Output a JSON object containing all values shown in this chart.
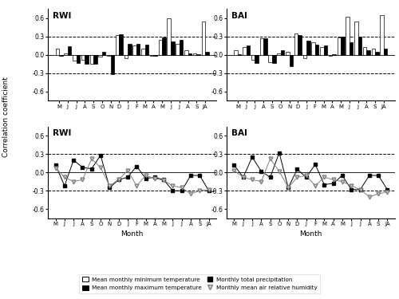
{
  "months": [
    "M",
    "J",
    "J",
    "A",
    "S",
    "O",
    "N",
    "D",
    "J",
    "F",
    "M",
    "A",
    "M",
    "J",
    "J",
    "A",
    "S",
    "JA"
  ],
  "significance_level": 0.3,
  "RWI_top_tmin": [
    0.1,
    0.03,
    -0.1,
    -0.08,
    -0.15,
    -0.03,
    -0.02,
    0.32,
    -0.05,
    0.15,
    0.1,
    -0.02,
    0.25,
    0.6,
    0.18,
    0.08,
    0.02,
    0.55
  ],
  "RWI_top_tmax": [
    -0.02,
    0.14,
    -0.13,
    -0.15,
    -0.15,
    0.05,
    -0.32,
    0.33,
    0.18,
    0.18,
    0.17,
    -0.01,
    0.28,
    0.22,
    0.25,
    0.03,
    0.01,
    0.05
  ],
  "BAI_top_tmin": [
    0.08,
    0.13,
    -0.08,
    0.27,
    -0.12,
    0.03,
    0.05,
    0.35,
    -0.06,
    0.2,
    0.13,
    -0.02,
    0.29,
    0.62,
    0.55,
    0.13,
    0.1,
    0.65
  ],
  "BAI_top_tmax": [
    0.01,
    0.15,
    -0.13,
    0.27,
    -0.13,
    0.08,
    -0.18,
    0.32,
    0.23,
    0.17,
    0.15,
    0.01,
    0.3,
    0.2,
    0.3,
    0.08,
    0.05,
    0.1
  ],
  "RWI_bot_prec": [
    0.12,
    -0.22,
    0.2,
    0.08,
    0.06,
    0.28,
    -0.25,
    -0.12,
    -0.08,
    0.1,
    -0.1,
    -0.08,
    -0.12,
    -0.3,
    -0.3,
    -0.05,
    -0.05,
    -0.3
  ],
  "RWI_bot_rh": [
    0.07,
    -0.08,
    -0.15,
    -0.12,
    0.22,
    0.08,
    -0.22,
    -0.12,
    0.03,
    -0.22,
    -0.05,
    -0.1,
    -0.13,
    -0.22,
    -0.25,
    -0.35,
    -0.3,
    -0.28
  ],
  "BAI_bot_prec": [
    0.12,
    -0.08,
    0.25,
    0.02,
    -0.08,
    0.32,
    -0.25,
    0.05,
    -0.08,
    0.13,
    -0.2,
    -0.18,
    -0.05,
    -0.28,
    -0.28,
    -0.05,
    -0.05,
    -0.28
  ],
  "BAI_bot_rh": [
    0.03,
    -0.08,
    -0.12,
    -0.15,
    0.22,
    0.02,
    -0.25,
    -0.08,
    -0.05,
    -0.22,
    -0.08,
    -0.12,
    -0.15,
    -0.22,
    -0.28,
    -0.4,
    -0.35,
    -0.32
  ],
  "color_tmin": "white",
  "color_tmax": "black",
  "ylabel": "Correlation coefficient",
  "sig_level": 0.3,
  "ylim": [
    -0.75,
    0.75
  ],
  "yticks": [
    -0.6,
    -0.3,
    0.0,
    0.3,
    0.6
  ],
  "ytick_labels": [
    "-0.6",
    "-0.3",
    "0.0",
    "0.3",
    "0.6"
  ]
}
